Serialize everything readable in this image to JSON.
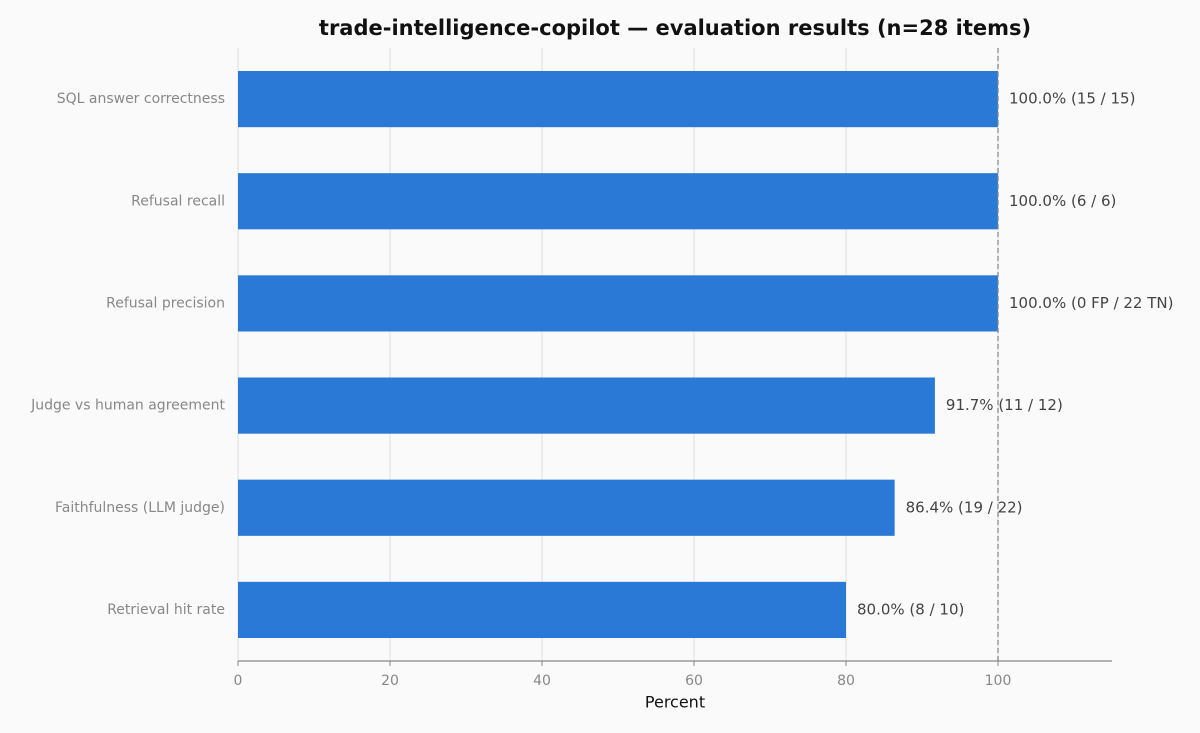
{
  "chart_data": {
    "type": "hbar",
    "title": "trade-intelligence-copilot — evaluation results (n=28 items)",
    "x_label": "Percent",
    "categories": [
      "SQL answer correctness",
      "Refusal recall",
      "Refusal precision",
      "Judge vs human agreement",
      "Faithfulness (LLM judge)",
      "Retrieval hit rate"
    ],
    "values": [
      100,
      100,
      100,
      91.7,
      86.4,
      80
    ],
    "value_labels": [
      "100.0%  (15 / 15)",
      "100.0%  (6 / 6)",
      "100.0%  (0 FP / 22 TN)",
      "91.7%  (11 / 12)",
      "86.4%  (19 / 22)",
      "80.0%  (8 / 10)"
    ],
    "color": "#2a79d6",
    "xlim": [
      0,
      115
    ],
    "xticks": [
      0,
      20,
      40,
      60,
      80,
      100
    ],
    "reference_line": 100,
    "grid": true
  }
}
